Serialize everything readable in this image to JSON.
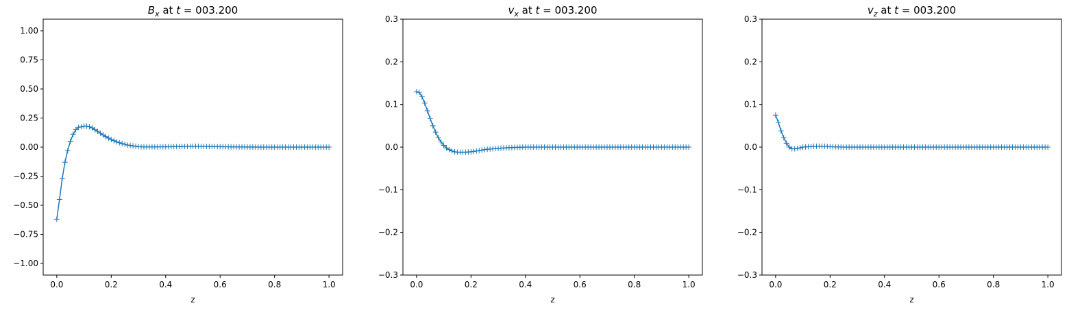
{
  "chart_data": [
    {
      "type": "line",
      "title": {
        "sym": "B",
        "sub": "x",
        "mid": " at ",
        "tvar": "t",
        "eq": " = 003.200"
      },
      "xlabel": "z",
      "ylabel": "",
      "xlim": [
        -0.05,
        1.05
      ],
      "ylim": [
        -1.1,
        1.1
      ],
      "xticks": [
        0.0,
        0.2,
        0.4,
        0.6,
        0.8,
        1.0
      ],
      "xtick_labels": [
        "0.0",
        "0.2",
        "0.4",
        "0.6",
        "0.8",
        "1.0"
      ],
      "yticks": [
        -1.0,
        -0.75,
        -0.5,
        -0.25,
        0.0,
        0.25,
        0.5,
        0.75,
        1.0
      ],
      "ytick_labels": [
        "−1.00",
        "−0.75",
        "−0.50",
        "−0.25",
        "0.00",
        "0.25",
        "0.50",
        "0.75",
        "1.00"
      ],
      "marker": "+",
      "series": [
        {
          "x": [
            0.0,
            0.01,
            0.02,
            0.03,
            0.04,
            0.05,
            0.06,
            0.07,
            0.08,
            0.09,
            0.1,
            0.11,
            0.12,
            0.13,
            0.14,
            0.15,
            0.16,
            0.18,
            0.2,
            0.22,
            0.24,
            0.26,
            0.28,
            0.3,
            0.32,
            0.35,
            0.4,
            0.45,
            0.5,
            0.55,
            0.6,
            0.65,
            0.7,
            0.75,
            0.8,
            0.85,
            0.9,
            0.95,
            1.0
          ],
          "y": [
            -0.62,
            -0.45,
            -0.27,
            -0.13,
            -0.03,
            0.05,
            0.11,
            0.15,
            0.17,
            0.175,
            0.18,
            0.18,
            0.175,
            0.165,
            0.15,
            0.135,
            0.12,
            0.09,
            0.065,
            0.045,
            0.03,
            0.018,
            0.01,
            0.004,
            0.002,
            0.002,
            0.003,
            0.005,
            0.007,
            0.006,
            0.004,
            0.002,
            0.001,
            0.0,
            0.0,
            0.0,
            0.0,
            0.0,
            0.0
          ]
        }
      ]
    },
    {
      "type": "line",
      "title": {
        "sym": "v",
        "sub": "x",
        "mid": " at ",
        "tvar": "t",
        "eq": " = 003.200"
      },
      "xlabel": "z",
      "ylabel": "",
      "xlim": [
        -0.05,
        1.05
      ],
      "ylim": [
        -0.3,
        0.3
      ],
      "xticks": [
        0.0,
        0.2,
        0.4,
        0.6,
        0.8,
        1.0
      ],
      "xtick_labels": [
        "0.0",
        "0.2",
        "0.4",
        "0.6",
        "0.8",
        "1.0"
      ],
      "yticks": [
        -0.3,
        -0.2,
        -0.1,
        0.0,
        0.1,
        0.2,
        0.3
      ],
      "ytick_labels": [
        "−0.3",
        "−0.2",
        "−0.1",
        "0.0",
        "0.1",
        "0.2",
        "0.3"
      ],
      "marker": "+",
      "series": [
        {
          "x": [
            0.0,
            0.01,
            0.02,
            0.03,
            0.04,
            0.05,
            0.06,
            0.07,
            0.08,
            0.09,
            0.1,
            0.11,
            0.12,
            0.13,
            0.14,
            0.15,
            0.16,
            0.18,
            0.2,
            0.22,
            0.24,
            0.26,
            0.28,
            0.3,
            0.32,
            0.35,
            0.4,
            0.45,
            0.5,
            0.55,
            0.6,
            0.65,
            0.7,
            0.75,
            0.8,
            0.85,
            0.9,
            0.95,
            1.0
          ],
          "y": [
            0.13,
            0.128,
            0.118,
            0.103,
            0.085,
            0.067,
            0.05,
            0.035,
            0.022,
            0.012,
            0.004,
            -0.002,
            -0.006,
            -0.009,
            -0.011,
            -0.012,
            -0.012,
            -0.012,
            -0.011,
            -0.009,
            -0.007,
            -0.005,
            -0.004,
            -0.003,
            -0.002,
            -0.001,
            0.0,
            0.0,
            0.0,
            0.0,
            0.0,
            0.0,
            0.0,
            0.0,
            0.0,
            0.0,
            0.0,
            0.0,
            0.0
          ]
        }
      ]
    },
    {
      "type": "line",
      "title": {
        "sym": "v",
        "sub": "z",
        "mid": " at ",
        "tvar": "t",
        "eq": " = 003.200"
      },
      "xlabel": "z",
      "ylabel": "",
      "xlim": [
        -0.05,
        1.05
      ],
      "ylim": [
        -0.3,
        0.3
      ],
      "xticks": [
        0.0,
        0.2,
        0.4,
        0.6,
        0.8,
        1.0
      ],
      "xtick_labels": [
        "0.0",
        "0.2",
        "0.4",
        "0.6",
        "0.8",
        "1.0"
      ],
      "yticks": [
        -0.3,
        -0.2,
        -0.1,
        0.0,
        0.1,
        0.2,
        0.3
      ],
      "ytick_labels": [
        "−0.3",
        "−0.2",
        "−0.1",
        "0.0",
        "0.1",
        "0.2",
        "0.3"
      ],
      "marker": "+",
      "series": [
        {
          "x": [
            0.0,
            0.01,
            0.02,
            0.03,
            0.04,
            0.05,
            0.06,
            0.07,
            0.08,
            0.09,
            0.1,
            0.12,
            0.14,
            0.16,
            0.18,
            0.2,
            0.25,
            0.3,
            0.35,
            0.4,
            0.45,
            0.5,
            0.55,
            0.6,
            0.65,
            0.7,
            0.75,
            0.8,
            0.85,
            0.9,
            0.95,
            1.0
          ],
          "y": [
            0.075,
            0.058,
            0.038,
            0.022,
            0.009,
            0.0,
            -0.004,
            -0.004,
            -0.003,
            -0.002,
            0.0,
            0.001,
            0.002,
            0.002,
            0.002,
            0.001,
            0.0,
            0.0,
            0.0,
            0.0,
            0.0,
            0.0,
            0.0,
            0.0,
            0.0,
            0.0,
            0.0,
            0.0,
            0.0,
            0.0,
            0.0,
            0.0
          ]
        }
      ]
    }
  ],
  "colors": {
    "series": "#1f77b4",
    "axes": "#000000",
    "background": "#ffffff"
  }
}
